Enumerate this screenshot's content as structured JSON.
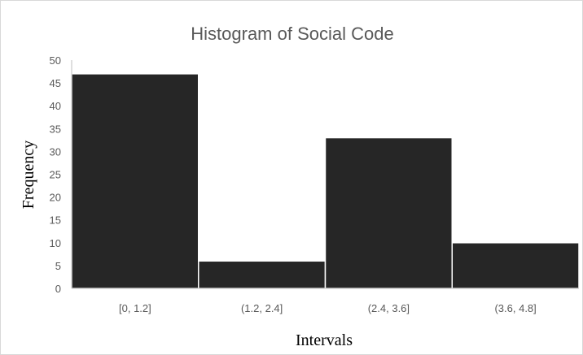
{
  "chart_data": {
    "type": "bar",
    "title": "Histogram of Social Code",
    "xlabel": "Intervals",
    "ylabel": "Frequency",
    "categories": [
      "[0, 1.2]",
      "(1.2, 2.4]",
      "(2.4, 3.6]",
      "(3.6, 4.8]"
    ],
    "values": [
      47,
      6,
      33,
      10
    ],
    "ylim": [
      0,
      50
    ],
    "yticks": [
      "0",
      "5",
      "10",
      "15",
      "20",
      "25",
      "30",
      "35",
      "40",
      "45",
      "50"
    ],
    "grid": false,
    "legend": "none",
    "colors": {
      "bar": "#262626",
      "bar_edge": "#ffffff",
      "axis": "#bfbfbf",
      "text": "#595959"
    }
  }
}
